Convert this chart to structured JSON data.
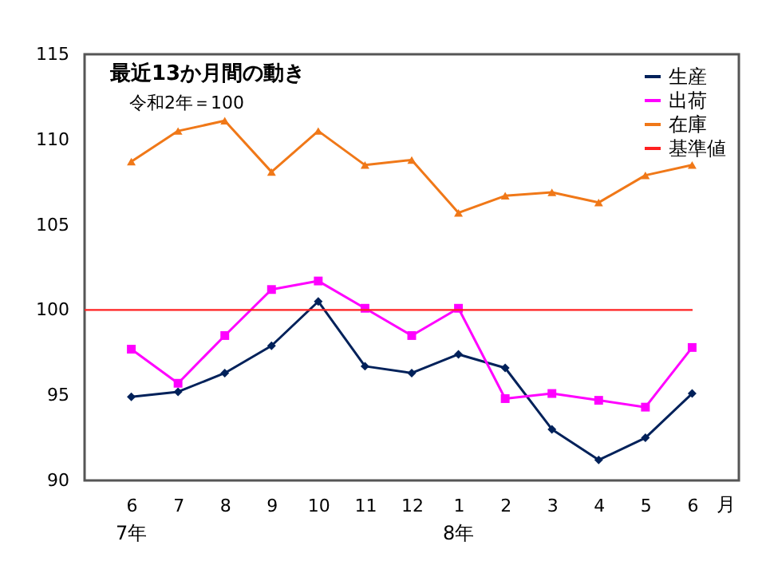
{
  "chart_data": {
    "type": "line",
    "title": "最近13か月間の動き",
    "xlabel": "月",
    "annotations": [
      "令和2年＝100",
      "7年",
      "8年"
    ],
    "categories": [
      "6",
      "7",
      "8",
      "9",
      "10",
      "11",
      "12",
      "1",
      "2",
      "3",
      "4",
      "5",
      "6"
    ],
    "series": [
      {
        "name": "生産",
        "color": "#00215a",
        "marker": "diamond",
        "values": [
          94.9,
          95.2,
          96.3,
          97.9,
          100.5,
          96.7,
          96.3,
          97.4,
          96.6,
          93.0,
          91.2,
          92.5,
          95.1
        ]
      },
      {
        "name": "出荷",
        "color": "#ff00ff",
        "marker": "square",
        "values": [
          97.7,
          95.7,
          98.5,
          101.2,
          101.7,
          100.1,
          98.5,
          100.1,
          94.8,
          95.1,
          94.7,
          94.3,
          97.8
        ]
      },
      {
        "name": "在庫",
        "color": "#f07818",
        "marker": "triangle",
        "values": [
          108.7,
          110.5,
          111.1,
          108.1,
          110.5,
          108.5,
          108.8,
          105.7,
          106.7,
          106.9,
          106.3,
          107.9,
          108.5
        ]
      }
    ],
    "ref_lines": [
      {
        "axis": "y",
        "value": 100,
        "label": "基準値",
        "color": "#ff2020"
      }
    ],
    "ylim": [
      90,
      115
    ],
    "yticks": [
      90,
      95,
      100,
      105,
      110,
      115
    ],
    "grid": false,
    "legend": "top right"
  }
}
